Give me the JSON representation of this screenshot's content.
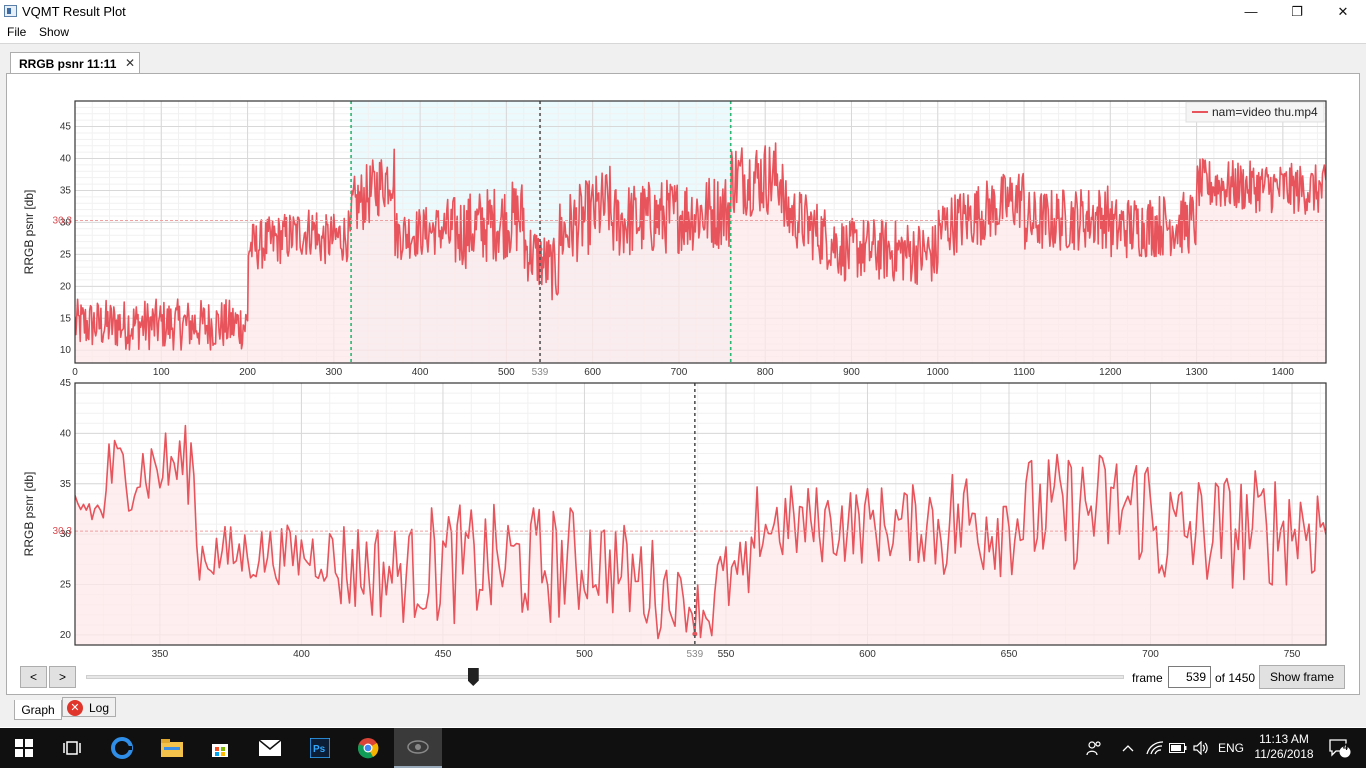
{
  "window": {
    "title": "VQMT Result Plot",
    "min": "—",
    "max": "❐",
    "close": "✕"
  },
  "menu": {
    "file": "File",
    "show": "Show"
  },
  "tab": {
    "label": "RRGB psnr 11:11",
    "close": "✕"
  },
  "colors": {
    "series": "#e8545c",
    "fill": "#fde8e9",
    "selection_band": "#eafafd",
    "selection_edge": "#2bb673",
    "cursor": "#555555",
    "grid": "#e4e4e4",
    "avg_line": "#f0a0a0",
    "avg_label": "#d94a50"
  },
  "chart_data": [
    {
      "id": "overview",
      "type": "line",
      "ylabel": "RRGB psnr [db]",
      "xlim": [
        0,
        1450
      ],
      "ylim": [
        8,
        49
      ],
      "xticks": [
        0,
        100,
        200,
        300,
        400,
        500,
        600,
        700,
        800,
        900,
        1000,
        1100,
        1200,
        1300,
        1400
      ],
      "yticks": [
        10,
        15,
        20,
        25,
        30,
        35,
        40,
        45
      ],
      "average": 30.3,
      "average_label": "30,3",
      "cursor_frame": 539,
      "cursor_label": "539",
      "selection": [
        320,
        760
      ],
      "legend": {
        "label": "nam=video thu.mp4",
        "position": "top-right"
      },
      "series": [
        {
          "name": "nam=video thu.mp4",
          "segments": [
            [
              0,
              14,
              200,
              14,
              4
            ],
            [
              201,
              26,
              280,
              29,
              4
            ],
            [
              281,
              27,
              320,
              28,
              4
            ],
            [
              321,
              32,
              370,
              38,
              5
            ],
            [
              371,
              28,
              430,
              29,
              4
            ],
            [
              431,
              28,
              520,
              31,
              6
            ],
            [
              521,
              26,
              560,
              22,
              5
            ],
            [
              561,
              28,
              620,
              33,
              6
            ],
            [
              621,
              30,
              760,
              32,
              6
            ],
            [
              761,
              37,
              820,
              37,
              6
            ],
            [
              821,
              32,
              900,
              25,
              5
            ],
            [
              901,
              26,
              1000,
              25,
              5
            ],
            [
              1001,
              29,
              1100,
              34,
              5
            ],
            [
              1101,
              30,
              1200,
              31,
              5
            ],
            [
              1201,
              29,
              1300,
              30,
              5
            ],
            [
              1301,
              36,
              1450,
              35,
              4
            ]
          ]
        }
      ]
    },
    {
      "id": "zoom",
      "type": "line",
      "ylabel": "RRGB psnr [db]",
      "xlim": [
        320,
        762
      ],
      "ylim": [
        19,
        45
      ],
      "xticks": [
        350,
        400,
        450,
        500,
        550,
        600,
        650,
        700,
        750
      ],
      "yticks": [
        20,
        25,
        30,
        35,
        40,
        45
      ],
      "average": 30.3,
      "average_label": "30,3",
      "cursor_frame": 539,
      "cursor_label": "539",
      "series": [
        {
          "name": "nam=video thu.mp4",
          "segments": [
            [
              320,
              33,
              330,
              32,
              2
            ],
            [
              331,
              36,
              362,
              37,
              4
            ],
            [
              363,
              28,
              410,
              28,
              3
            ],
            [
              411,
              27,
              440,
              26,
              5
            ],
            [
              441,
              27,
              500,
              27,
              6
            ],
            [
              501,
              28,
              530,
              24,
              5
            ],
            [
              531,
              24,
              545,
              22,
              3
            ],
            [
              546,
              25,
              560,
              26,
              4
            ],
            [
              561,
              31,
              620,
              31,
              4
            ],
            [
              621,
              31,
              700,
              33,
              6
            ],
            [
              701,
              30,
              762,
              31,
              6
            ]
          ]
        }
      ]
    }
  ],
  "navigation": {
    "prev_label": "<",
    "next_label": ">",
    "frame_label": "frame",
    "frame_value": "539",
    "frame_total": "of 1450",
    "show_frame_label": "Show frame",
    "slider": {
      "min": 0,
      "max": 1450,
      "value": 539
    }
  },
  "bottom_tabs": {
    "graph": "Graph",
    "log": "Log"
  },
  "taskbar": {
    "language": "ENG",
    "time": "11:13 AM",
    "date": "11/26/2018",
    "notifications": "4",
    "apps": [
      "start-icon",
      "task-view-icon",
      "edge-icon",
      "file-explorer-icon",
      "store-icon",
      "mail-icon",
      "photoshop-icon",
      "chrome-icon",
      "vqmt-icon"
    ]
  }
}
